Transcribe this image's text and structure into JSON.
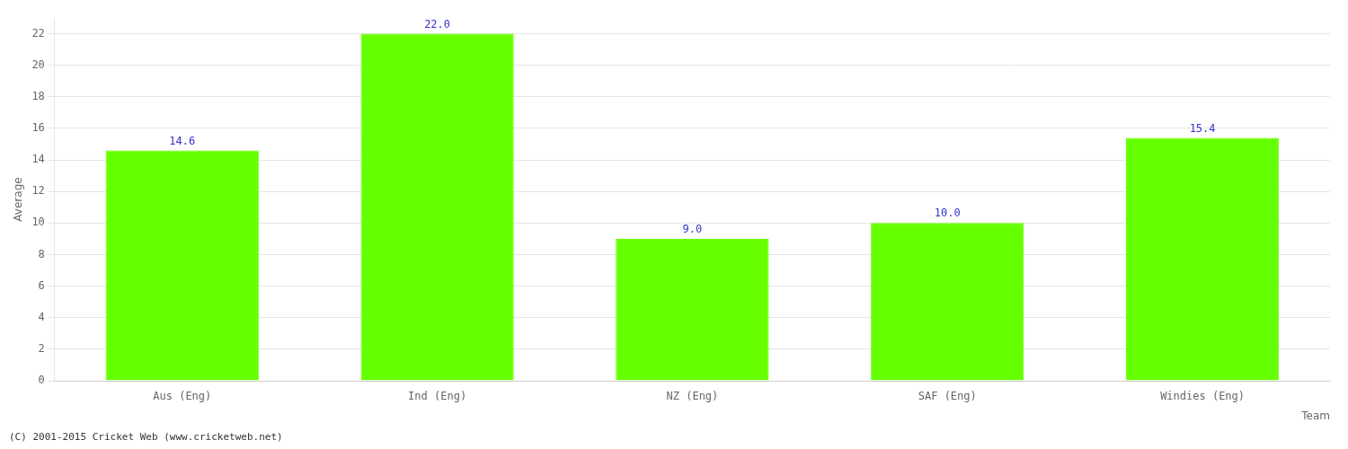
{
  "chart_data": {
    "type": "bar",
    "categories": [
      "Aus (Eng)",
      "Ind (Eng)",
      "NZ (Eng)",
      "SAF (Eng)",
      "Windies (Eng)"
    ],
    "values": [
      14.6,
      22.0,
      9.0,
      10.0,
      15.4
    ],
    "value_labels": [
      "14.6",
      "22.0",
      "9.0",
      "10.0",
      "15.4"
    ],
    "data_labels": true,
    "color": "#66ff00",
    "xlabel": "Team",
    "ylabel": "Average",
    "ylim": [
      0,
      23
    ],
    "yticks": [
      0,
      2,
      4,
      6,
      8,
      10,
      12,
      14,
      16,
      18,
      20,
      22
    ],
    "grid": true,
    "annotations": [
      "(C) 2001-2015 Cricket Web (www.cricketweb.net)"
    ]
  }
}
